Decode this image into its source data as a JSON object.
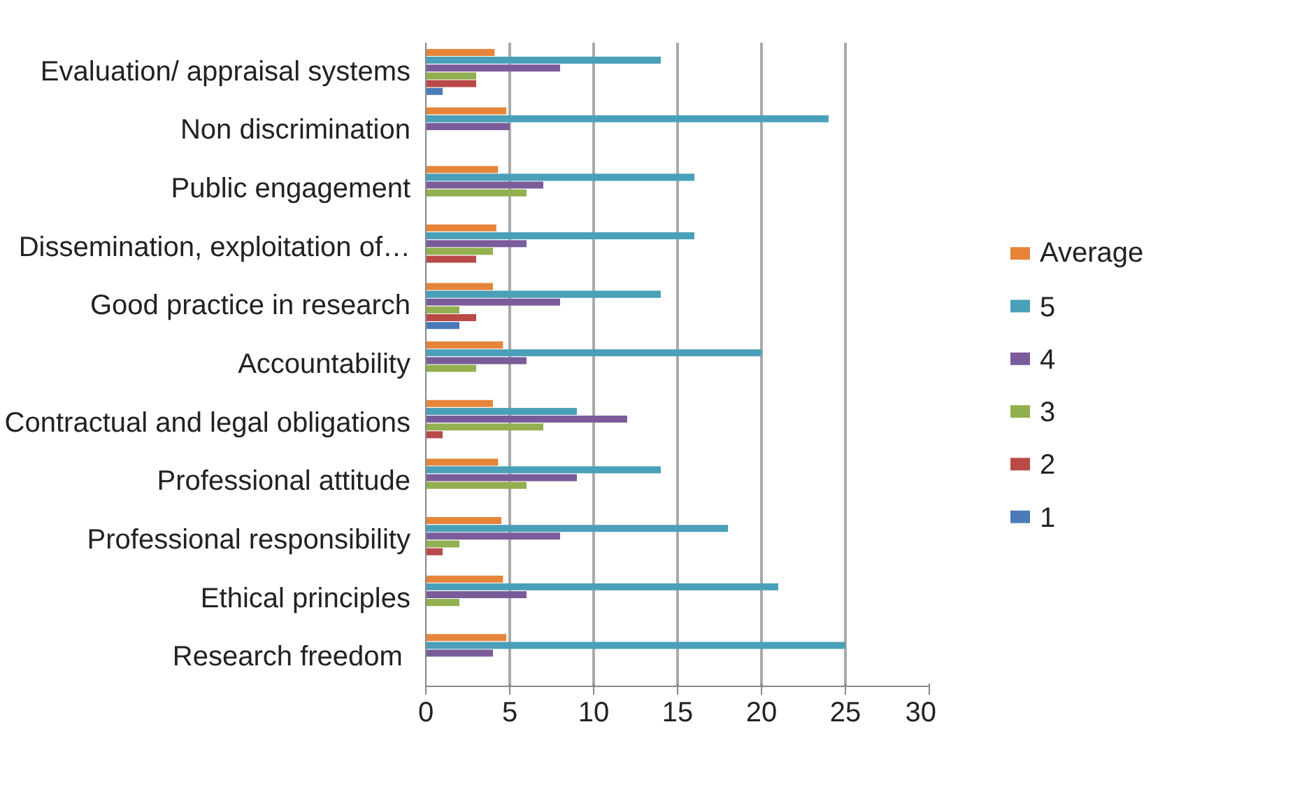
{
  "chart_data": {
    "type": "bar",
    "orientation": "horizontal",
    "categories": [
      "Evaluation/ appraisal systems",
      "Non discrimination",
      "Public engagement",
      "Dissemination, exploitation of…",
      "Good practice in research",
      "Accountability",
      "Contractual and legal obligations",
      "Professional attitude",
      "Professional responsibility",
      "Ethical principles",
      "Research  freedom"
    ],
    "series": [
      {
        "name": "Average",
        "color": "#e6853a",
        "values": [
          4.1,
          4.8,
          4.3,
          4.2,
          4.0,
          4.6,
          4.0,
          4.3,
          4.5,
          4.6,
          4.8
        ]
      },
      {
        "name": "5",
        "color": "#4aa0b8",
        "values": [
          14,
          24,
          16,
          16,
          14,
          20,
          9,
          14,
          18,
          21,
          25
        ]
      },
      {
        "name": "4",
        "color": "#7a5c9a",
        "values": [
          8,
          5,
          7,
          6,
          8,
          6,
          12,
          9,
          8,
          6,
          4
        ]
      },
      {
        "name": "3",
        "color": "#92b050",
        "values": [
          3,
          null,
          6,
          4,
          2,
          3,
          7,
          6,
          2,
          2,
          null
        ]
      },
      {
        "name": "2",
        "color": "#b94a47",
        "values": [
          3,
          null,
          null,
          3,
          3,
          null,
          1,
          null,
          1,
          null,
          null
        ]
      },
      {
        "name": "1",
        "color": "#4a7ab8",
        "values": [
          1,
          null,
          null,
          null,
          2,
          null,
          null,
          null,
          null,
          null,
          null
        ]
      }
    ],
    "xlim": [
      0,
      30
    ],
    "xticks": [
      0,
      5,
      10,
      15,
      20,
      25,
      30
    ],
    "grid": "x",
    "legend": "right"
  }
}
